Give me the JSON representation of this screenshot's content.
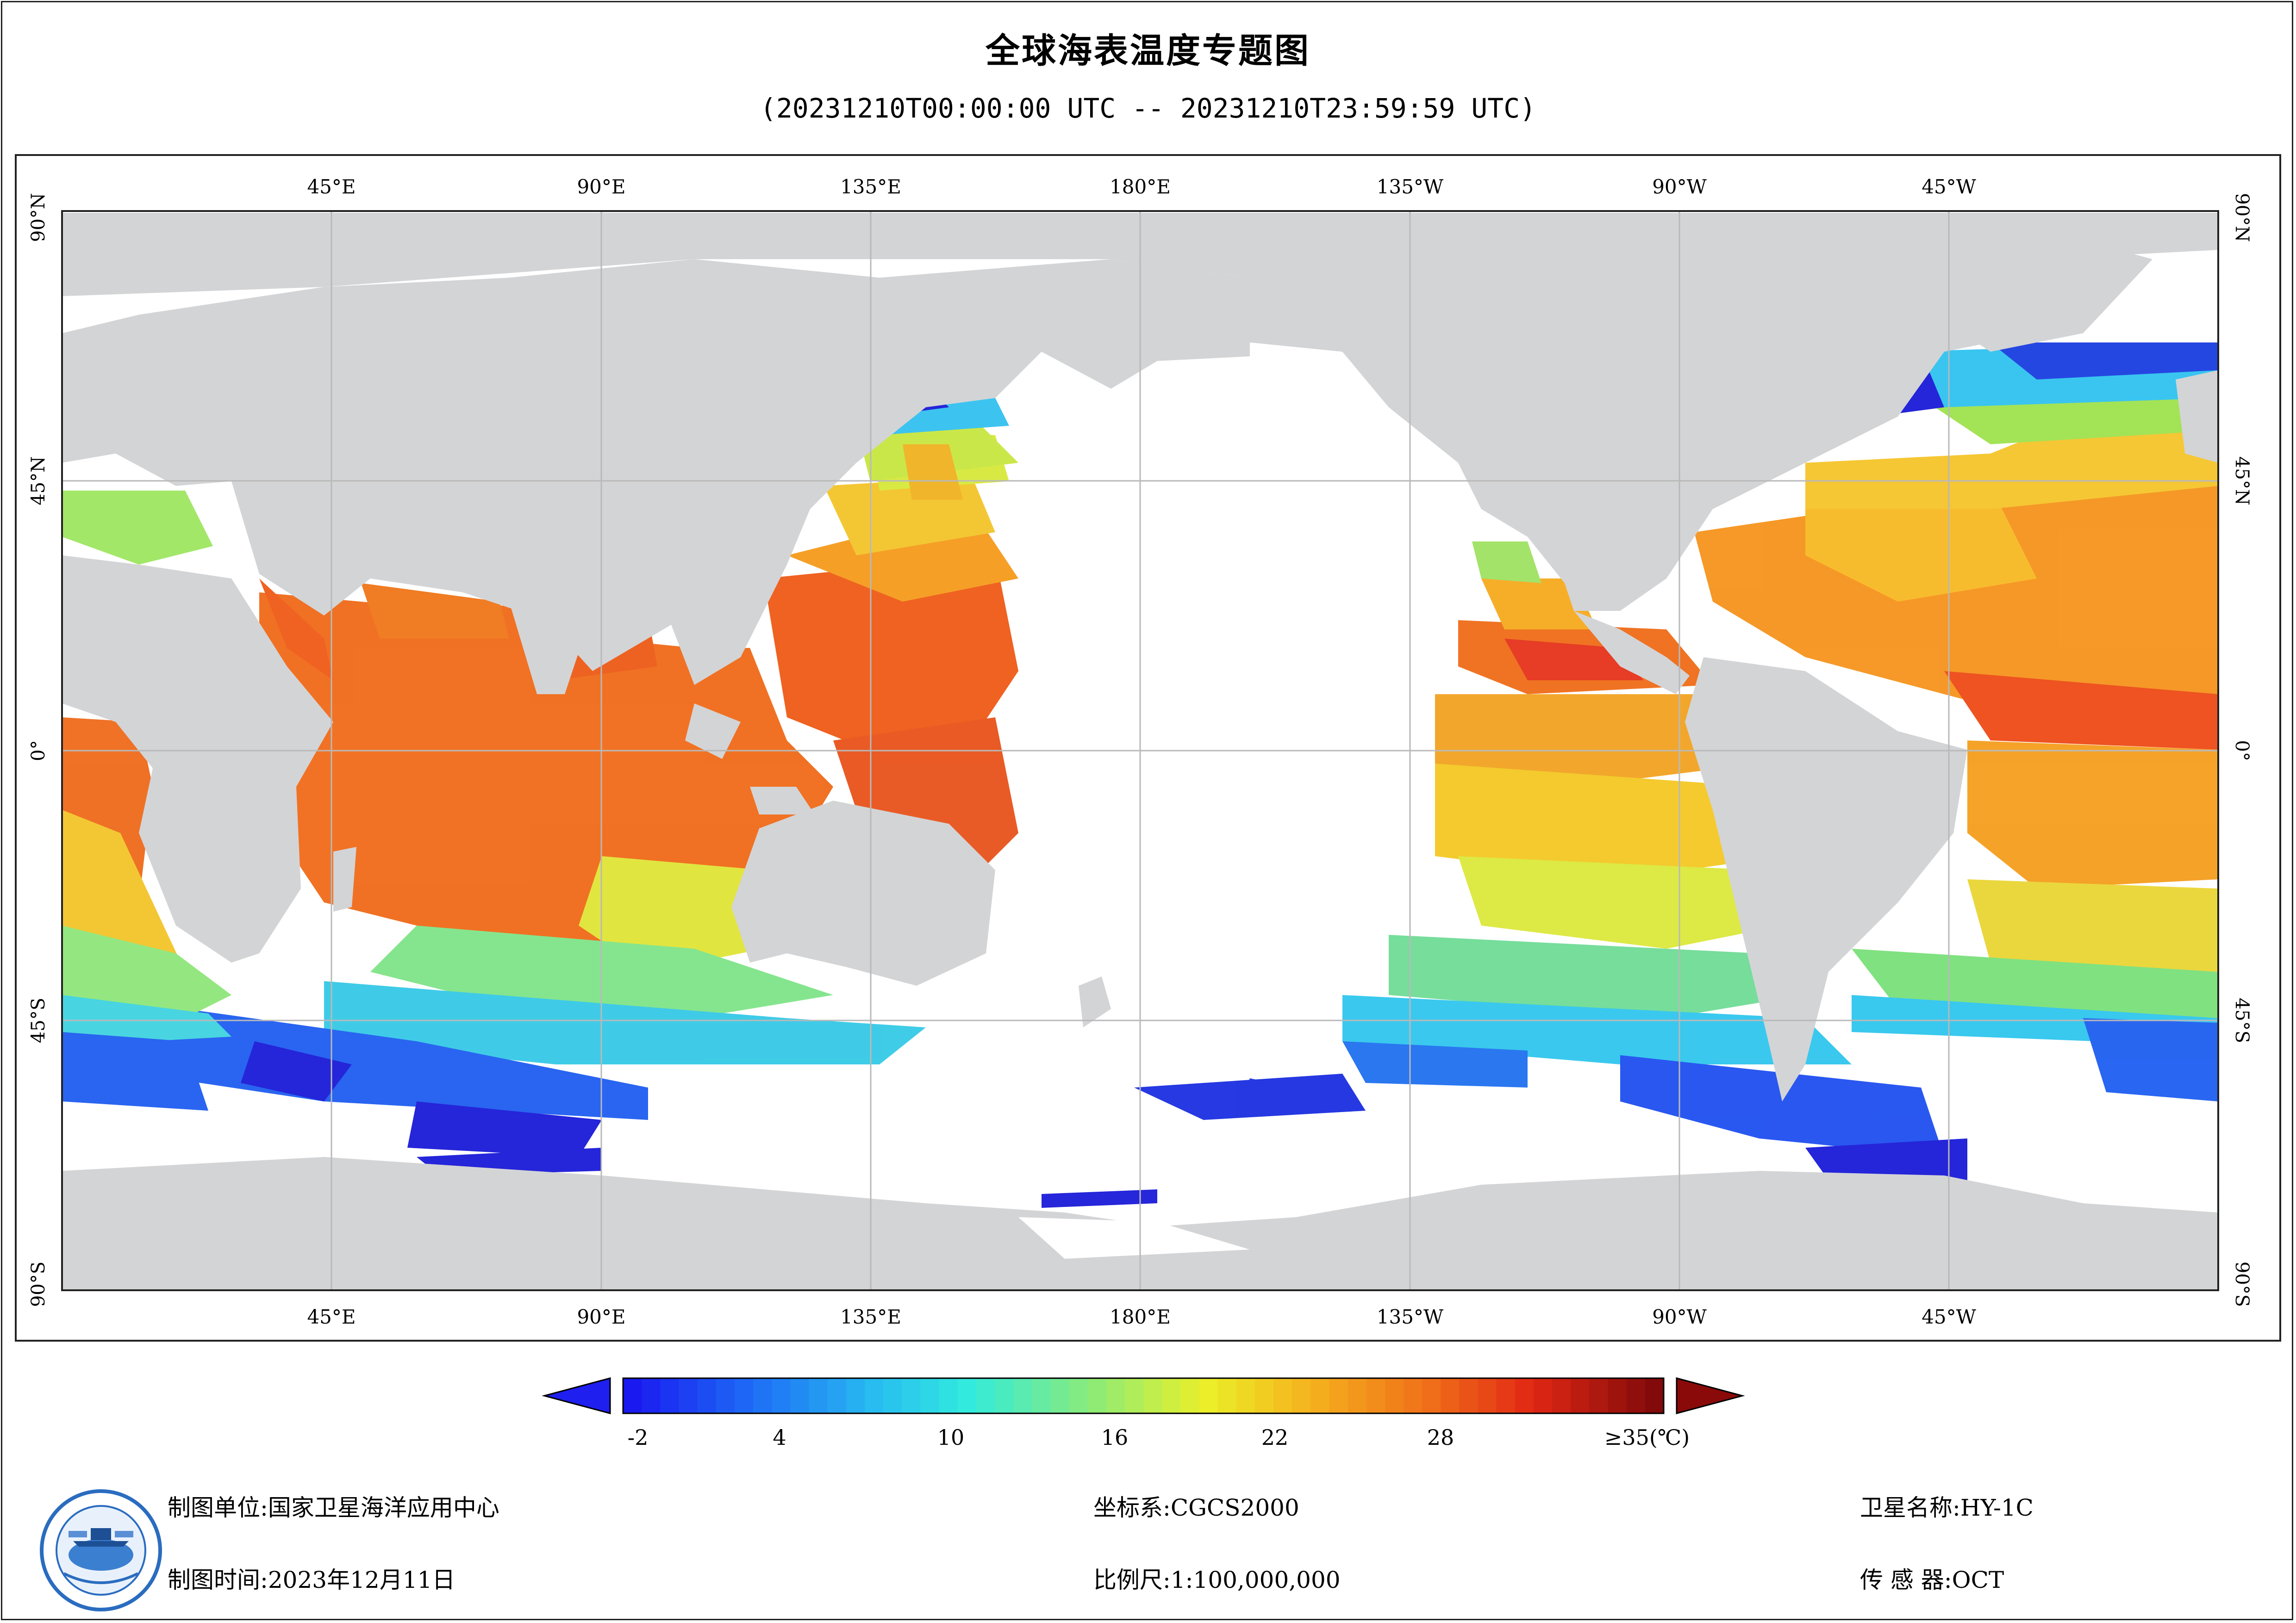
{
  "title": "全球海表温度专题图",
  "subtitle": "(20231210T00:00:00 UTC -- 20231210T23:59:59 UTC)",
  "map": {
    "lon_labels": [
      "45°E",
      "90°E",
      "135°E",
      "180°E",
      "135°W",
      "90°W",
      "45°W"
    ],
    "lat_labels": [
      "90°N",
      "45°N",
      "0°",
      "45°S",
      "90°S"
    ],
    "land_color": "#d3d4d6",
    "gridline_color": "#b9b9b9"
  },
  "colorbar": {
    "ticks": [
      "-2",
      "4",
      "10",
      "16",
      "22",
      "28",
      "≥35(℃)"
    ],
    "left_arrow_color": "#1f1ff0",
    "right_arrow_color": "#8a0a0a"
  },
  "footer": {
    "unit_label": "制图单位:国家卫星海洋应用中心",
    "time_label": "制图时间:2023年12月11日",
    "crs_label": "坐标系:CGCS2000",
    "scale_label": "比例尺:1:100,000,000",
    "satellite_label": "卫星名称:HY-1C",
    "sensor_label": "传 感 器:OCT"
  }
}
